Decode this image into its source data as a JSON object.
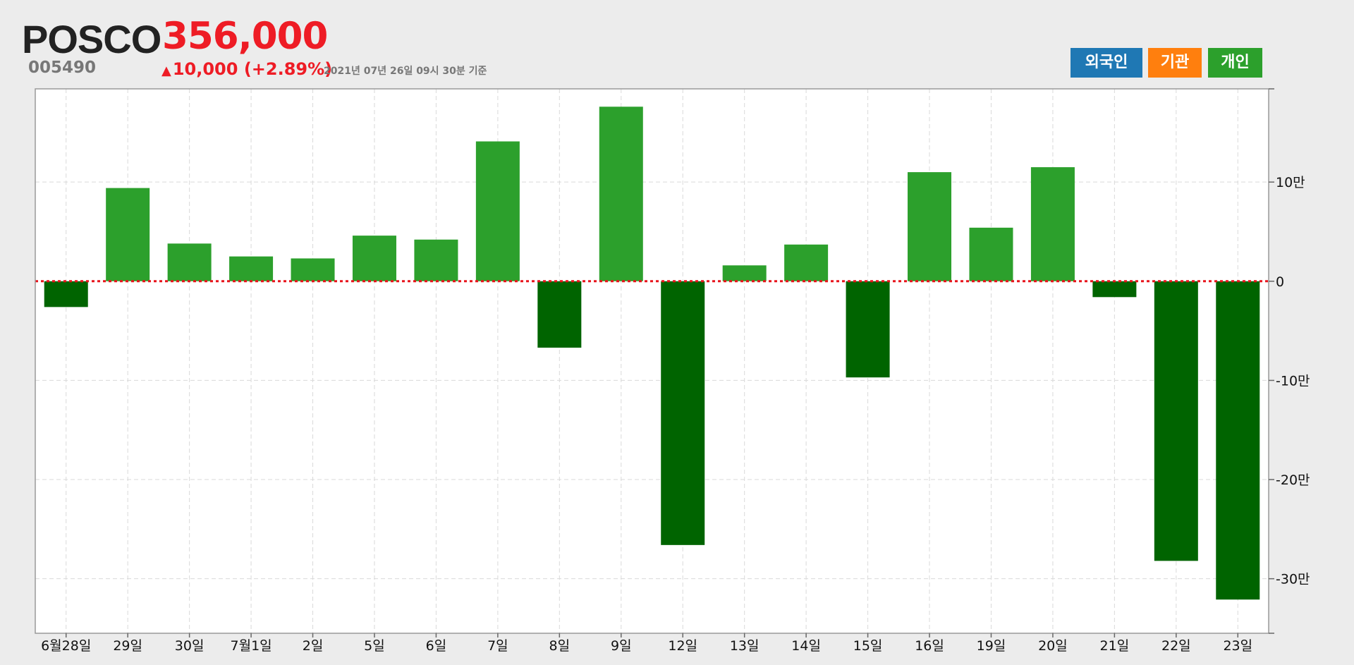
{
  "header": {
    "company": "POSCO",
    "code": "005490",
    "price": "356,000",
    "change_arrow": "▲",
    "change": "10,000 (+2.89%)",
    "as_of": "2021년 07년 26일 09시 30분 기준"
  },
  "legend": [
    {
      "label": "외국인",
      "color": "#1f78b4"
    },
    {
      "label": "기관",
      "color": "#ff7f0e"
    },
    {
      "label": "개인",
      "color": "#2ca02c"
    }
  ],
  "colors": {
    "positive": "#2ca02c",
    "negative": "#006400",
    "zero_line": "#e8141c",
    "grid": "#d9d9d9",
    "axis": "#999999"
  },
  "chart_data": {
    "type": "bar",
    "series_name": "개인",
    "categories": [
      "6월28일",
      "29일",
      "30일",
      "7월1일",
      "2일",
      "5일",
      "6일",
      "7일",
      "8일",
      "9일",
      "12일",
      "13일",
      "14일",
      "15일",
      "16일",
      "19일",
      "20일",
      "21일",
      "22일",
      "23일"
    ],
    "values": [
      -26000,
      94000,
      38000,
      25000,
      23000,
      46000,
      42000,
      141000,
      -67000,
      176000,
      -266000,
      16000,
      37000,
      -97000,
      110000,
      54000,
      115000,
      -16000,
      -282000,
      -321000
    ],
    "ylim": [
      -355000,
      194000
    ],
    "yticks": [
      100000,
      0,
      -100000,
      -200000,
      -300000
    ],
    "ytick_labels": [
      "10만",
      "0",
      "-10만",
      "-20만",
      "-30만"
    ],
    "grid": true,
    "zero_line": "dotted"
  }
}
